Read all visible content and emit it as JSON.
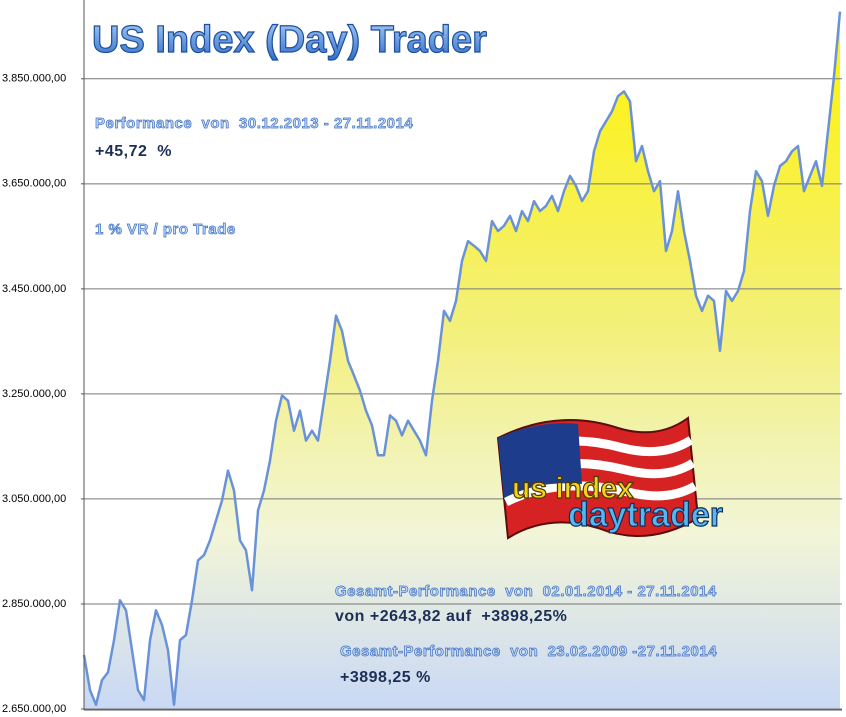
{
  "chart_data": {
    "type": "area",
    "title": "US Index (Day) Trader",
    "annotations": [
      "Performance  von  30.12.2013 - 27.11.2014",
      "+45,72  %",
      "1 % VR / pro Trade",
      "Gesamt-Performance  von  02.01.2014 - 27.11.2014",
      "von +2643,82 auf  +3898,25%",
      "Gesamt-Performance  von  23.02.2009 -27.11.2014",
      "+3898,25 %"
    ],
    "logo": [
      "us index",
      "daytrader"
    ],
    "color": "#6a92d8",
    "grid": true,
    "ylim": [
      2650000,
      4000000
    ],
    "yticks": [
      {
        "value": 2650000,
        "label": "2.650.000,00"
      },
      {
        "value": 2850000,
        "label": "2.850.000,00"
      },
      {
        "value": 3050000,
        "label": "3.050.000,00"
      },
      {
        "value": 3250000,
        "label": "3.250.000,00"
      },
      {
        "value": 3450000,
        "label": "3.450.000,00"
      },
      {
        "value": 3650000,
        "label": "3.650.000,00"
      },
      {
        "value": 3850000,
        "label": "3.850.000,00"
      }
    ],
    "values": [
      2753000,
      2686000,
      2658000,
      2705000,
      2720000,
      2781000,
      2857000,
      2838000,
      2762000,
      2686000,
      2667000,
      2781000,
      2838000,
      2810000,
      2762000,
      2658000,
      2781000,
      2791000,
      2857000,
      2933000,
      2943000,
      2971000,
      3009000,
      3047000,
      3104000,
      3066000,
      2971000,
      2952000,
      2876000,
      3028000,
      3066000,
      3123000,
      3199000,
      3247000,
      3237000,
      3180000,
      3218000,
      3161000,
      3180000,
      3161000,
      3237000,
      3313000,
      3399000,
      3370000,
      3313000,
      3285000,
      3256000,
      3218000,
      3190000,
      3133000,
      3133000,
      3209000,
      3199000,
      3171000,
      3199000,
      3180000,
      3161000,
      3133000,
      3237000,
      3313000,
      3408000,
      3389000,
      3427000,
      3503000,
      3541000,
      3532000,
      3522000,
      3503000,
      3579000,
      3560000,
      3570000,
      3589000,
      3560000,
      3598000,
      3579000,
      3617000,
      3598000,
      3608000,
      3627000,
      3598000,
      3636000,
      3665000,
      3646000,
      3617000,
      3636000,
      3712000,
      3750000,
      3769000,
      3788000,
      3817000,
      3826000,
      3807000,
      3693000,
      3722000,
      3674000,
      3636000,
      3655000,
      3522000,
      3560000,
      3636000,
      3560000,
      3503000,
      3437000,
      3408000,
      3437000,
      3427000,
      3332000,
      3446000,
      3427000,
      3446000,
      3484000,
      3598000,
      3674000,
      3655000,
      3589000,
      3646000,
      3684000,
      3693000,
      3712000,
      3722000,
      3636000,
      3665000,
      3693000,
      3646000,
      3750000,
      3855000,
      3978000
    ]
  }
}
